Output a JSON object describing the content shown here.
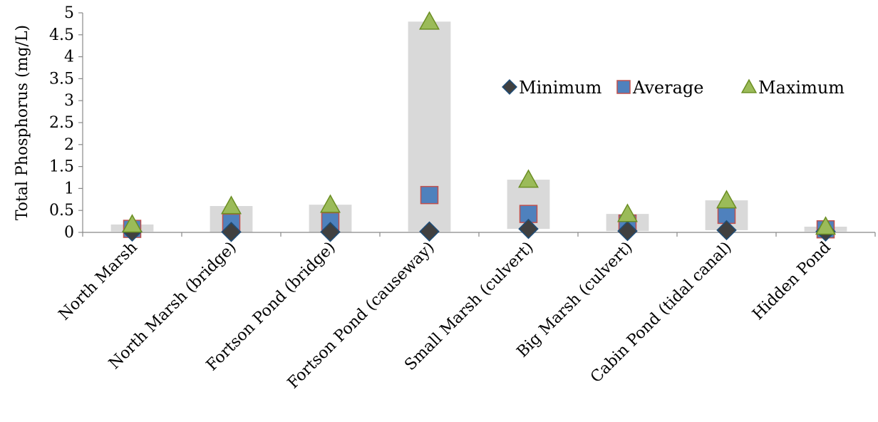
{
  "chart_data": {
    "type": "scatter",
    "title": "",
    "xlabel": "",
    "ylabel": "Total Phosphorus (mg/L)",
    "ylim": [
      0,
      5
    ],
    "yticks": [
      "0",
      "0.5",
      "1",
      "1.5",
      "2",
      "2.5",
      "3",
      "3.5",
      "4",
      "4.5",
      "5"
    ],
    "ytick_values": [
      0,
      0.5,
      1,
      1.5,
      2,
      2.5,
      3,
      3.5,
      4,
      4.5,
      5
    ],
    "categories": [
      "North Marsh",
      "North Marsh (bridge)",
      "Fortson Pond (bridge)",
      "Fortson Pond (causeway)",
      "Small Marsh (culvert)",
      "Big Marsh (culvert)",
      "Cabin Pond (tidal canal)",
      "Hidden Pond"
    ],
    "range_bars": {
      "color": "#d9d9d9",
      "from": "Minimum",
      "to": "Maximum"
    },
    "series": [
      {
        "name": "Minimum",
        "marker": "diamond",
        "color": "#1f4e79",
        "fill": "#404040",
        "values": [
          0.02,
          0.01,
          0.01,
          0.02,
          0.08,
          0.03,
          0.05,
          0.02
        ]
      },
      {
        "name": "Average",
        "marker": "square",
        "color": "#c0504d",
        "fill": "#4f81bd",
        "values": [
          0.08,
          0.22,
          0.25,
          0.85,
          0.42,
          0.2,
          0.4,
          0.07
        ]
      },
      {
        "name": "Maximum",
        "marker": "triangle",
        "color": "#6b8e23",
        "fill": "#9bbb59",
        "values": [
          0.18,
          0.6,
          0.63,
          4.8,
          1.2,
          0.42,
          0.73,
          0.13
        ]
      }
    ],
    "grid": false,
    "legend_position": "upper-right inside plot"
  }
}
